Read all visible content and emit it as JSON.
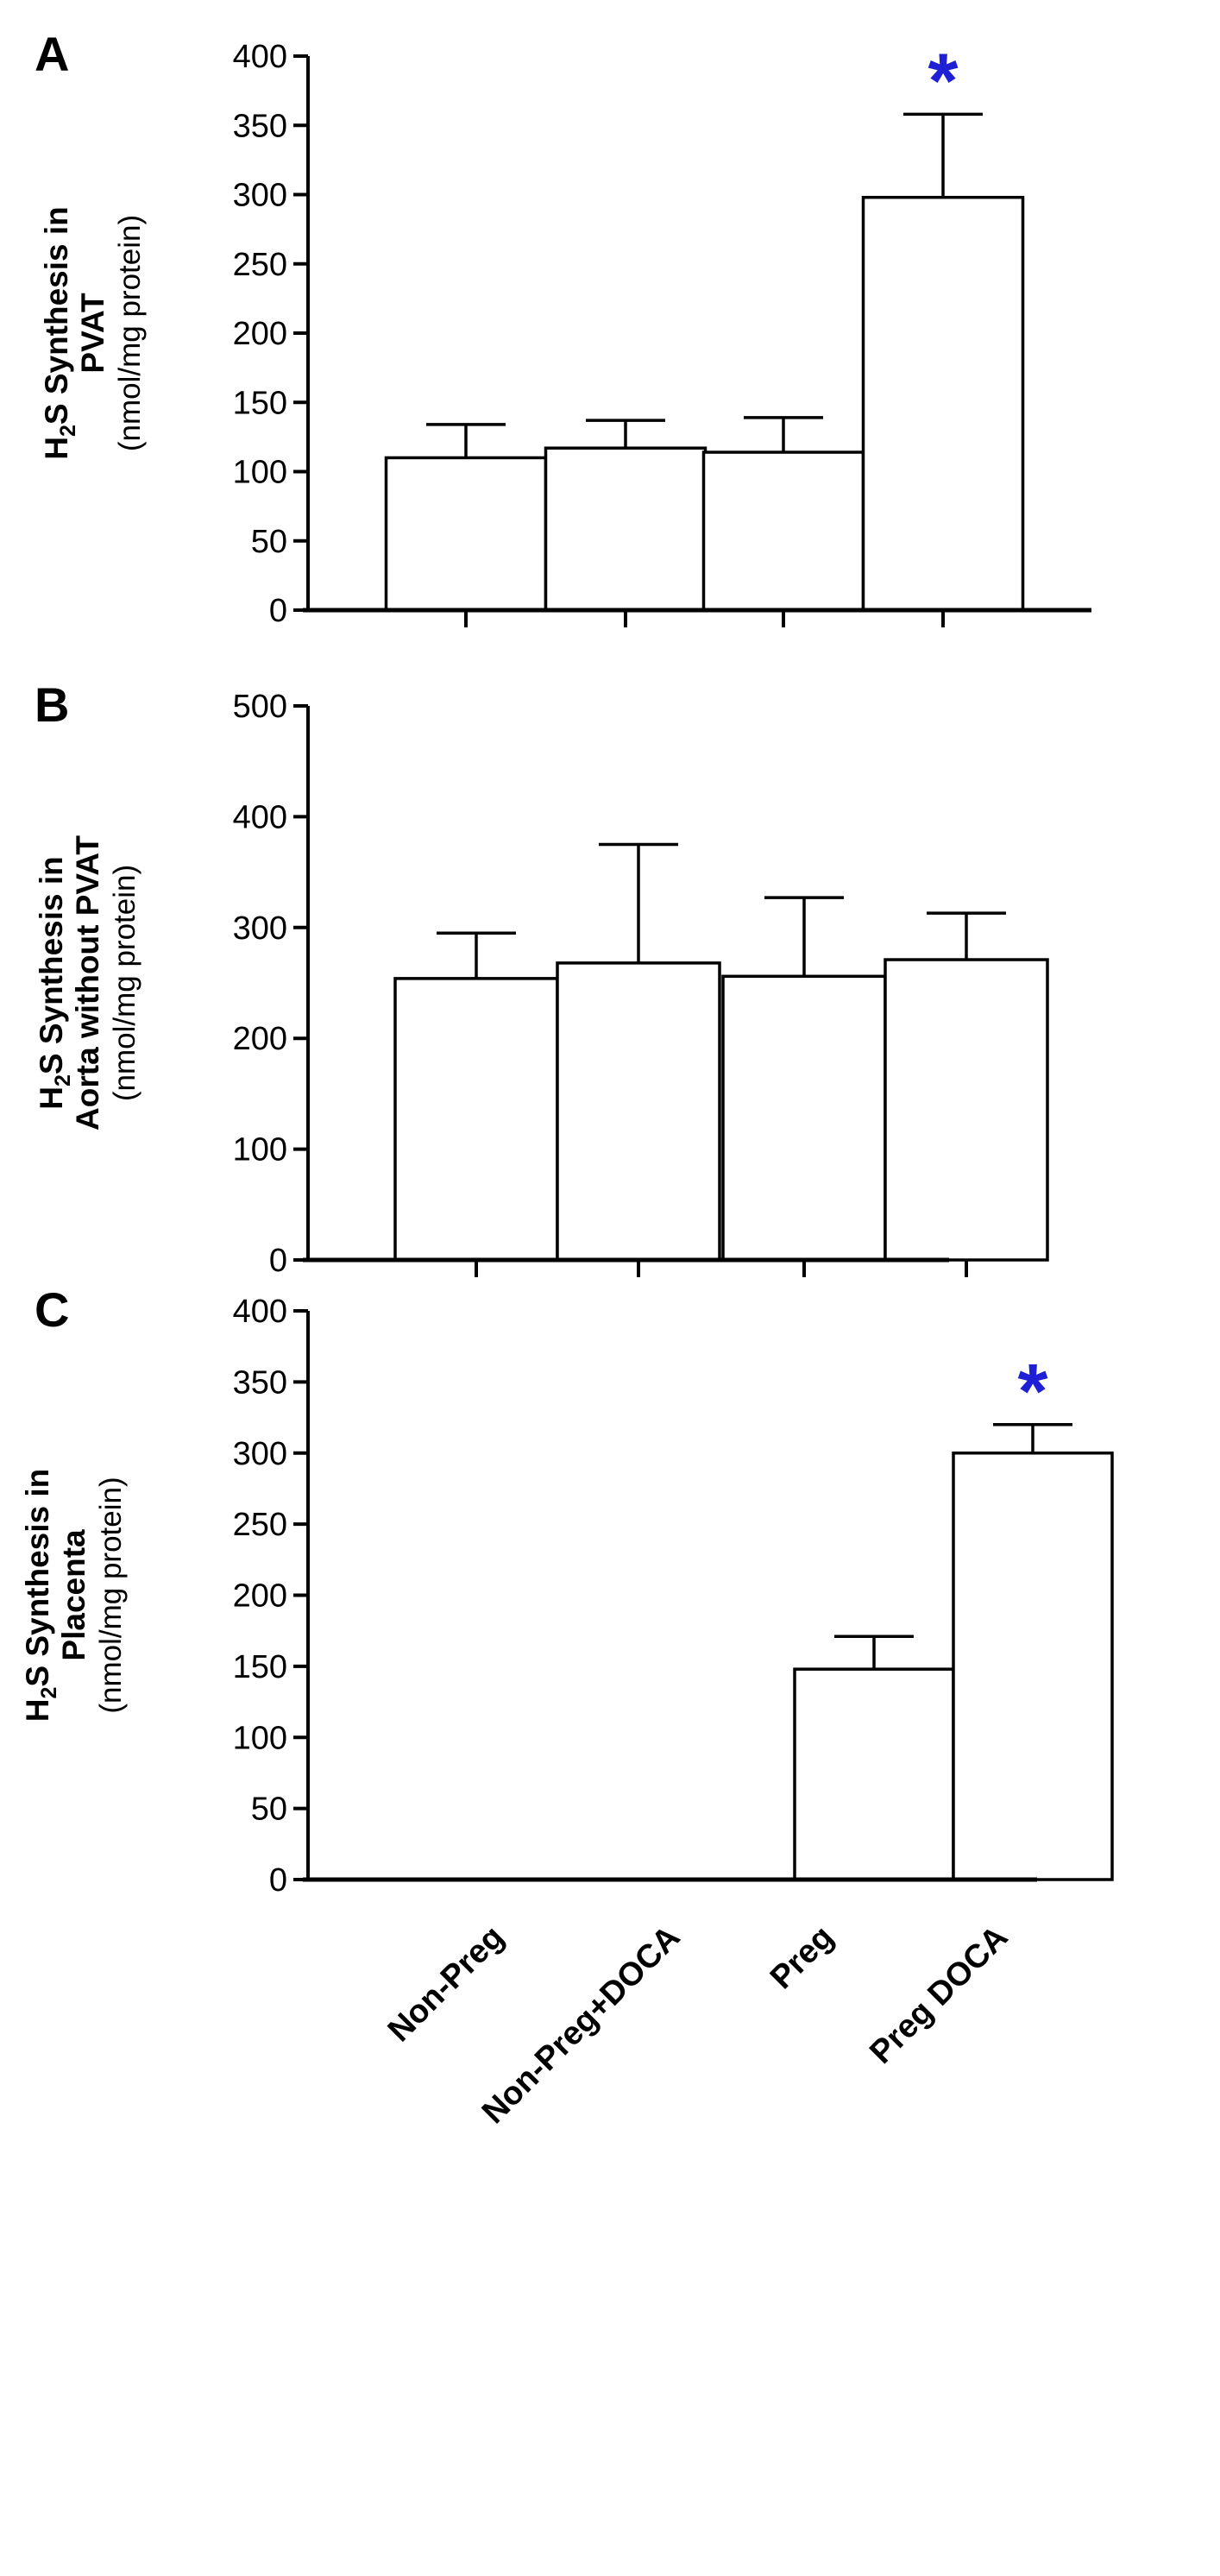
{
  "figure": {
    "categories": [
      "Non-Preg",
      "Non-Preg+DOCA",
      "Preg",
      "Preg DOCA"
    ],
    "significance_symbol": "*",
    "colors": {
      "axis": "#000000",
      "bar_fill": "#ffffff",
      "significance": "#1f1fd6"
    }
  },
  "chart_data": [
    {
      "type": "bar",
      "panel": "A",
      "ylabel_main": "H2S Synthesis in",
      "ylabel_main_prefix": "H",
      "ylabel_main_sub": "2",
      "ylabel_main_suffix": "S Synthesis in",
      "ylabel_line2": "PVAT",
      "ylabel_units": "(nmol/mg protein)",
      "ylim": [
        0,
        400
      ],
      "yticks": [
        0,
        50,
        100,
        150,
        200,
        250,
        300,
        350,
        400
      ],
      "categories": [
        "Non-Preg",
        "Non-Preg+DOCA",
        "Preg",
        "Preg DOCA"
      ],
      "values": [
        110,
        117,
        114,
        298
      ],
      "errors": [
        24,
        20,
        25,
        60
      ],
      "significant": [
        false,
        false,
        false,
        true
      ]
    },
    {
      "type": "bar",
      "panel": "B",
      "ylabel_main": "H2S Synthesis in",
      "ylabel_main_prefix": "H",
      "ylabel_main_sub": "2",
      "ylabel_main_suffix": "S Synthesis in",
      "ylabel_line2": "Aorta without PVAT",
      "ylabel_units": "(nmol/mg protein)",
      "ylim": [
        0,
        500
      ],
      "yticks": [
        0,
        100,
        200,
        300,
        400,
        500
      ],
      "categories": [
        "Non-Preg",
        "Non-Preg+DOCA",
        "Preg",
        "Preg DOCA"
      ],
      "values": [
        254,
        268,
        256,
        271
      ],
      "errors": [
        41,
        107,
        71,
        42
      ],
      "significant": [
        false,
        false,
        false,
        false
      ]
    },
    {
      "type": "bar",
      "panel": "C",
      "ylabel_main": "H2S Synthesis in",
      "ylabel_main_prefix": "H",
      "ylabel_main_sub": "2",
      "ylabel_main_suffix": "S Synthesis in",
      "ylabel_line2": "Placenta",
      "ylabel_units": "(nmol/mg protein)",
      "ylim": [
        0,
        400
      ],
      "yticks": [
        0,
        50,
        100,
        150,
        200,
        250,
        300,
        350,
        400
      ],
      "categories": [
        "Non-Preg",
        "Non-Preg+DOCA",
        "Preg",
        "Preg DOCA"
      ],
      "values": [
        null,
        null,
        148,
        300
      ],
      "errors": [
        null,
        null,
        23,
        20
      ],
      "significant": [
        false,
        false,
        false,
        true
      ]
    }
  ]
}
